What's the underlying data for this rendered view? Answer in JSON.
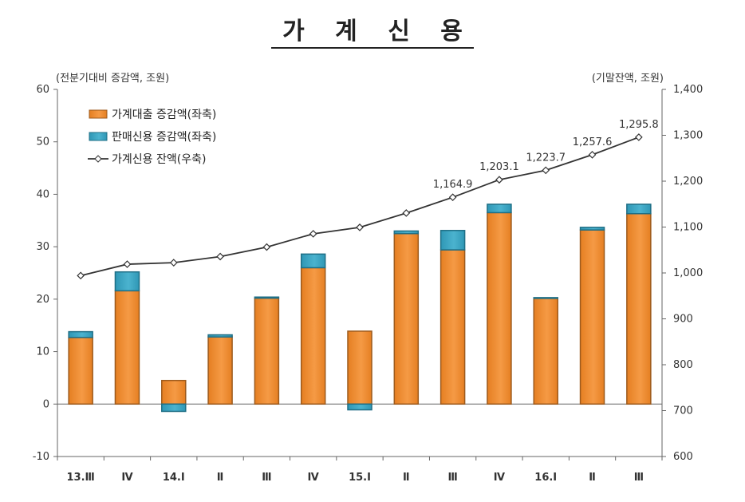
{
  "title": "가 계 신 용",
  "chart_data": {
    "type": "bar",
    "title": "가 계 신 용",
    "left_axis_label": "(전분기대비 증감액, 조원)",
    "right_axis_label": "(기말잔액, 조원)",
    "categories": [
      "13.Ⅲ",
      "Ⅳ",
      "14.Ⅰ",
      "Ⅱ",
      "Ⅲ",
      "Ⅳ",
      "15.Ⅰ",
      "Ⅱ",
      "Ⅲ",
      "Ⅳ",
      "16.Ⅰ",
      "Ⅱ",
      "Ⅲ"
    ],
    "left_ylim": [
      -10,
      60
    ],
    "left_yticks": [
      "60",
      "50",
      "40",
      "30",
      "20",
      "10",
      "0",
      "-10"
    ],
    "right_ylim": [
      600,
      1400
    ],
    "right_yticks": [
      "1,400",
      "1,300",
      "1,200",
      "1,100",
      "1,000",
      "900",
      "800",
      "700",
      "600"
    ],
    "series": [
      {
        "name": "가계대출 증감액(좌축)",
        "kind": "stacked-bar",
        "axis": "left",
        "color": "#f59a45",
        "values": [
          12.7,
          21.6,
          4.5,
          12.8,
          20.2,
          26.0,
          13.9,
          32.5,
          29.4,
          36.5,
          20.2,
          33.2,
          36.3
        ]
      },
      {
        "name": "판매신용 증감액(좌축)",
        "kind": "stacked-bar",
        "axis": "left",
        "color": "#4bb3cf",
        "values": [
          1.1,
          3.6,
          -1.4,
          0.4,
          0.2,
          2.6,
          -1.1,
          0.5,
          3.7,
          1.6,
          0.1,
          0.5,
          1.8
        ]
      },
      {
        "name": "가계신용 잔액(우축)",
        "kind": "line",
        "axis": "right",
        "color": "#333333",
        "values": [
          994.2,
          1019.0,
          1022.4,
          1035.7,
          1056.4,
          1085.3,
          1099.3,
          1130.5,
          1164.9,
          1203.1,
          1223.7,
          1257.6,
          1295.8
        ]
      }
    ],
    "data_labels": [
      {
        "index": 8,
        "text": "1,164.9"
      },
      {
        "index": 9,
        "text": "1,203.1"
      },
      {
        "index": 10,
        "text": "1,223.7"
      },
      {
        "index": 11,
        "text": "1,257.6"
      },
      {
        "index": 12,
        "text": "1,295.8"
      }
    ],
    "legend_position": "top-left",
    "grid": false
  }
}
